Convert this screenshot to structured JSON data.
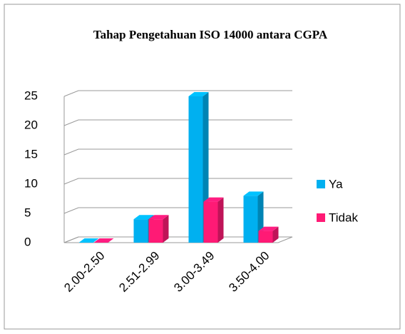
{
  "chart_data": {
    "type": "bar3d",
    "title": "Tahap Pengetahuan ISO 14000 antara CGPA",
    "categories": [
      "2.00-2.50",
      "2.51-2.99",
      "3.00-3.49",
      "3.50-4.00"
    ],
    "series": [
      {
        "name": "Ya",
        "color": "#00b0f0",
        "values": [
          0,
          4,
          25,
          8
        ]
      },
      {
        "name": "Tidak",
        "color": "#ff1a75",
        "values": [
          0,
          4,
          7,
          2
        ]
      }
    ],
    "ylim": [
      0,
      25
    ],
    "yticks": [
      0,
      5,
      10,
      15,
      20,
      25
    ],
    "grid": true,
    "legend": "right"
  }
}
